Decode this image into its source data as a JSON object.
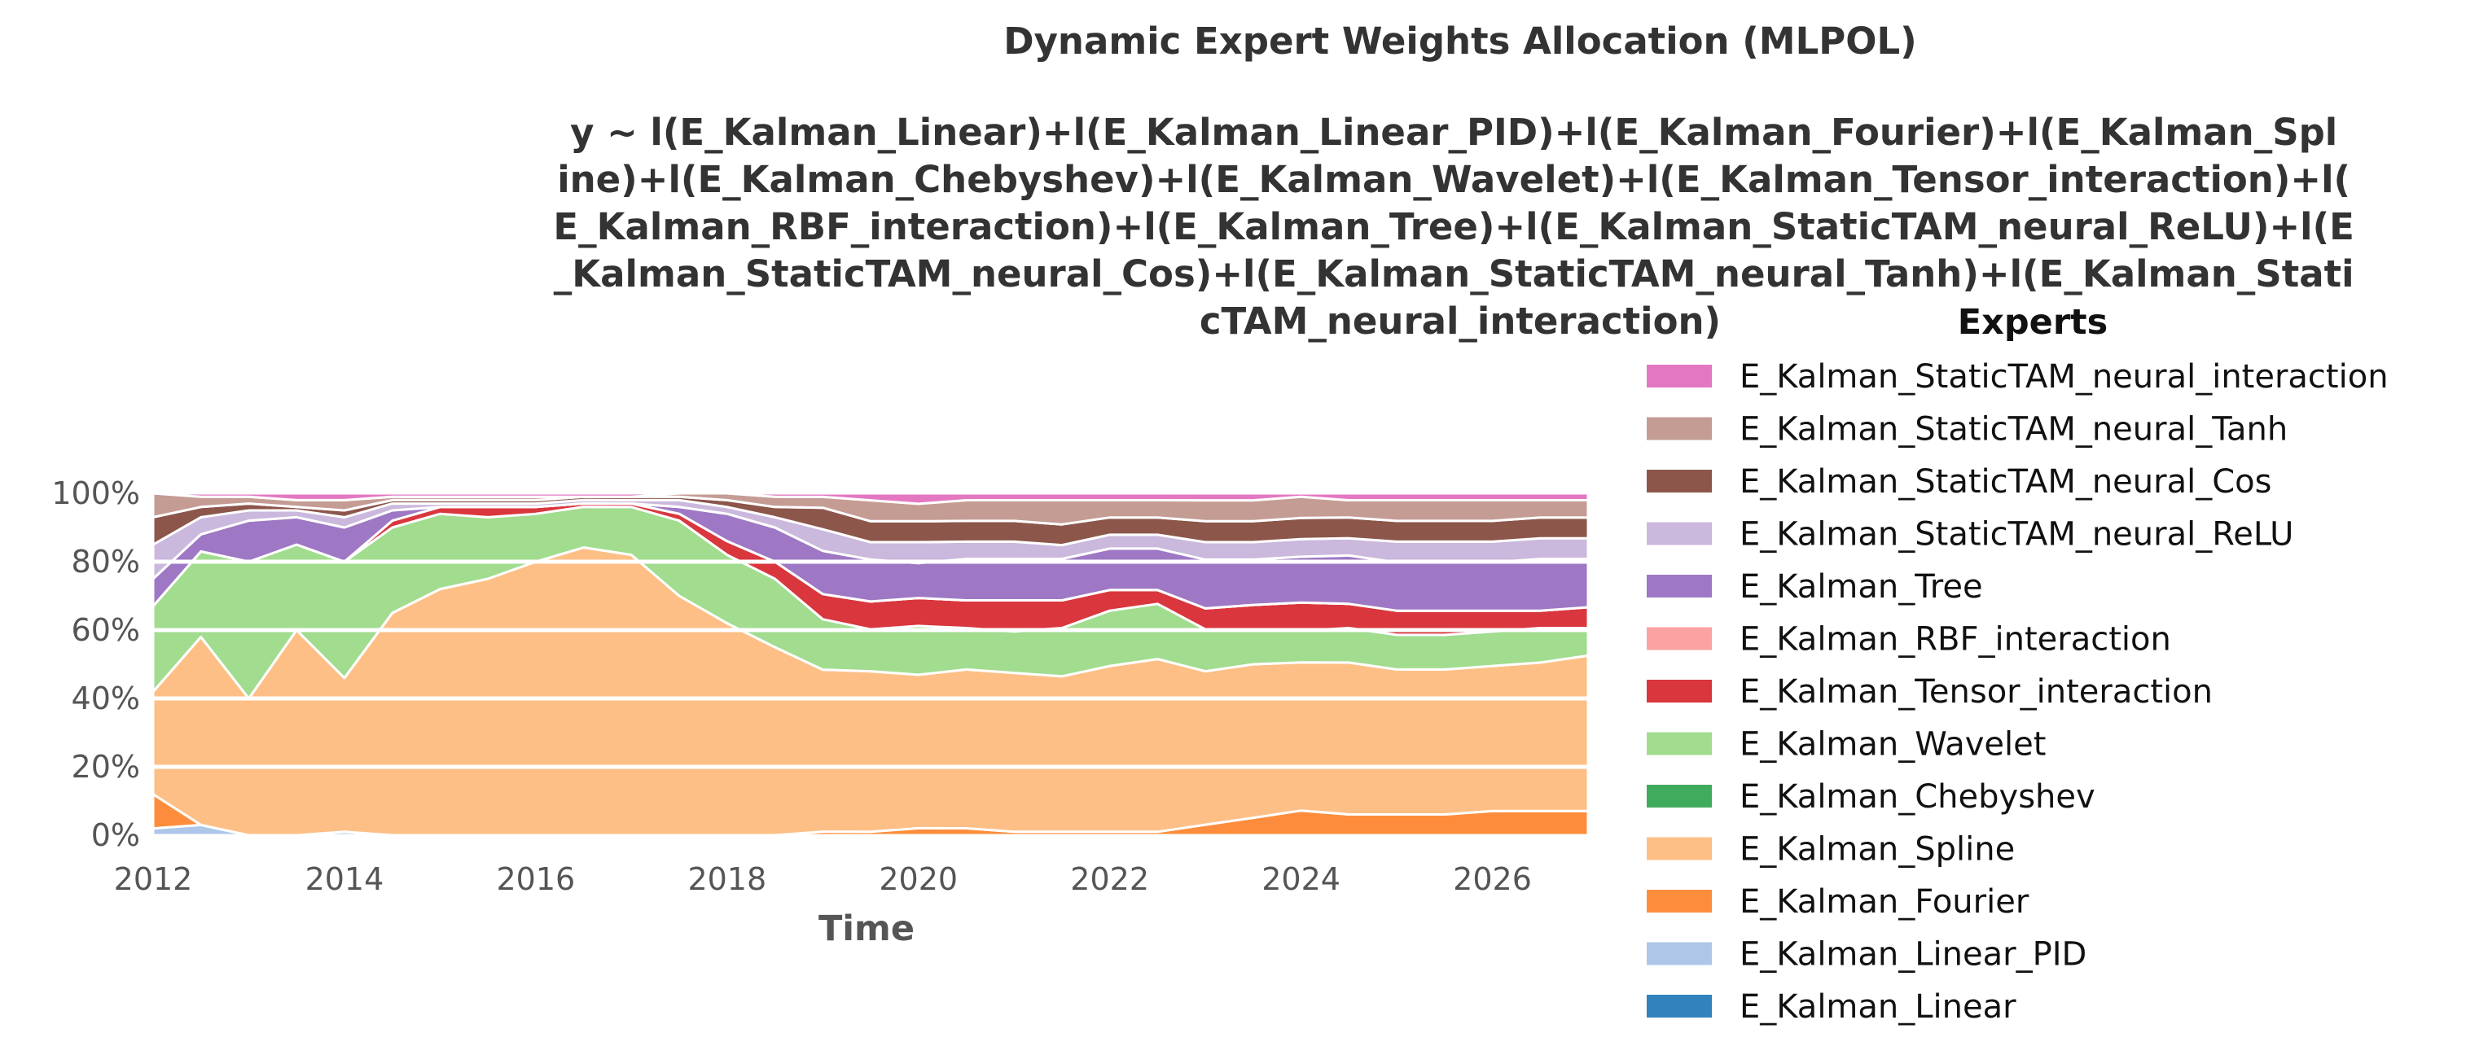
{
  "chart_data": {
    "type": "area",
    "stacked": "percent",
    "title": "Dynamic Expert Weights Allocation (MLPOL)",
    "subtitle": "y ~ l(E_Kalman_Linear)+l(E_Kalman_Linear_PID)+l(E_Kalman_Fourier)+l(E_Kalman_Spline)+l(E_Kalman_Chebyshev)+l(E_Kalman_Wavelet)+l(E_Kalman_Tensor_interaction)+l(E_Kalman_RBF_interaction)+l(E_Kalman_Tree)+l(E_Kalman_StaticTAM_neural_ReLU)+l(E_Kalman_StaticTAM_neural_Cos)+l(E_Kalman_StaticTAM_neural_Tanh)+l(E_Kalman_StaticTAM_neural_interaction)",
    "subtitle_lines": [
      "y ~ l(E_Kalman_Linear)+l(E_Kalman_Linear_PID)+l(E_Kalman_Fourier)+l(E_Kalman_Spl",
      "ine)+l(E_Kalman_Chebyshev)+l(E_Kalman_Wavelet)+l(E_Kalman_Tensor_interaction)+l(",
      "E_Kalman_RBF_interaction)+l(E_Kalman_Tree)+l(E_Kalman_StaticTAM_neural_ReLU)+l(E",
      "_Kalman_StaticTAM_neural_Cos)+l(E_Kalman_StaticTAM_neural_Tanh)+l(E_Kalman_Stati",
      "cTAM_neural_interaction)"
    ],
    "xlabel": "Time",
    "ylabel": "",
    "xlim": [
      2012,
      2027
    ],
    "ylim": [
      0,
      100
    ],
    "x_ticks": [
      2012,
      2014,
      2016,
      2018,
      2020,
      2022,
      2024,
      2026
    ],
    "y_ticks": [
      0,
      20,
      40,
      60,
      80,
      100
    ],
    "y_tick_labels": [
      "0%",
      "20%",
      "40%",
      "60%",
      "80%",
      "100%"
    ],
    "grid": "horizontal",
    "legend": {
      "title": "Experts",
      "placement": "outside-right"
    },
    "x": [
      2012.0,
      2012.5,
      2013.0,
      2013.5,
      2014.0,
      2014.5,
      2015.0,
      2015.5,
      2016.0,
      2016.5,
      2017.0,
      2017.5,
      2018.0,
      2018.5,
      2019.0,
      2019.5,
      2020.0,
      2020.5,
      2021.0,
      2021.5,
      2022.0,
      2022.5,
      2023.0,
      2023.5,
      2024.0,
      2024.5,
      2025.0,
      2025.5,
      2026.0,
      2026.5,
      2027.0
    ],
    "series": [
      {
        "name": "E_Kalman_Linear",
        "color": "#3182bd",
        "values": [
          0,
          0,
          0,
          0,
          0,
          0,
          0,
          0,
          0,
          0,
          0,
          0,
          0,
          0,
          0,
          0,
          0,
          0,
          0,
          0,
          0,
          0,
          0,
          0,
          0,
          0,
          0,
          0,
          0,
          0,
          0
        ]
      },
      {
        "name": "E_Kalman_Linear_PID",
        "color": "#aec7e8",
        "values": [
          2,
          3,
          0,
          0,
          1,
          0,
          0,
          0,
          0,
          0,
          0,
          0,
          0,
          0,
          0,
          0,
          0,
          0,
          0,
          0,
          0,
          0,
          0,
          0,
          0,
          0,
          0,
          0,
          0,
          0,
          0
        ]
      },
      {
        "name": "E_Kalman_Fourier",
        "color": "#fd8d3c",
        "values": [
          10,
          0,
          0,
          0,
          0,
          0,
          0,
          0,
          0,
          0,
          0,
          0,
          0,
          0,
          1,
          1,
          2,
          2,
          1,
          1,
          1,
          1,
          3,
          5,
          7,
          6,
          6,
          6,
          7,
          7,
          7
        ]
      },
      {
        "name": "E_Kalman_Spline",
        "color": "#fdbf86",
        "values": [
          30,
          55,
          40,
          60,
          45,
          65,
          72,
          75,
          80,
          85,
          82,
          70,
          62,
          55,
          45,
          46,
          44,
          46,
          46,
          45,
          48,
          50,
          44,
          44,
          42,
          44,
          42,
          42,
          42,
          43,
          45
        ]
      },
      {
        "name": "E_Kalman_Chebyshev",
        "color": "#41ab5d",
        "values": [
          0,
          0,
          0,
          0,
          0,
          0,
          0,
          0,
          0,
          0,
          0,
          0,
          0,
          0,
          0,
          0,
          0,
          0,
          0,
          0,
          0,
          0,
          0,
          0,
          0,
          0,
          0,
          0,
          0,
          0,
          0
        ]
      },
      {
        "name": "E_Kalman_Wavelet",
        "color": "#a1dc8f",
        "values": [
          25,
          25,
          40,
          25,
          34,
          25,
          22,
          18,
          14,
          12,
          14,
          22,
          20,
          20,
          14,
          12,
          14,
          12,
          12,
          14,
          16,
          16,
          12,
          10,
          9,
          10,
          10,
          10,
          10,
          10,
          8
        ]
      },
      {
        "name": "E_Kalman_Tensor_interaction",
        "color": "#d9363e",
        "values": [
          0,
          0,
          0,
          0,
          0,
          2,
          2,
          3,
          2,
          1,
          1,
          2,
          4,
          5,
          7,
          8,
          8,
          8,
          9,
          8,
          6,
          4,
          6,
          7,
          8,
          7,
          7,
          7,
          6,
          5,
          6
        ]
      },
      {
        "name": "E_Kalman_RBF_interaction",
        "color": "#fca2a2",
        "values": [
          0,
          0,
          0,
          0,
          0,
          0,
          0,
          0,
          0,
          0,
          0,
          0,
          0,
          0,
          0,
          0,
          0,
          0,
          0,
          0,
          0,
          0,
          0,
          0,
          0,
          0,
          0,
          0,
          0,
          0,
          0
        ]
      },
      {
        "name": "E_Kalman_Tree",
        "color": "#9e78c4",
        "values": [
          8,
          5,
          12,
          8,
          10,
          3,
          0,
          0,
          0,
          0,
          0,
          2,
          8,
          10,
          12,
          12,
          10,
          12,
          12,
          12,
          12,
          12,
          14,
          13,
          13,
          14,
          14,
          14,
          14,
          15,
          14
        ]
      },
      {
        "name": "E_Kalman_StaticTAM_neural_ReLU",
        "color": "#cbb8dd",
        "values": [
          10,
          5,
          3,
          2,
          3,
          2,
          1,
          1,
          1,
          1,
          1,
          2,
          2,
          3,
          6,
          5,
          6,
          5,
          5,
          4,
          4,
          4,
          5,
          5,
          5,
          5,
          6,
          6,
          6,
          6,
          6
        ]
      },
      {
        "name": "E_Kalman_StaticTAM_neural_Cos",
        "color": "#8c564b",
        "values": [
          8,
          3,
          2,
          1,
          2,
          1,
          1,
          1,
          1,
          1,
          1,
          1,
          2,
          3,
          6,
          6,
          6,
          6,
          6,
          6,
          5,
          5,
          6,
          6,
          6,
          6,
          6,
          6,
          6,
          6,
          6
        ]
      },
      {
        "name": "E_Kalman_StaticTAM_neural_Tanh",
        "color": "#c49c94",
        "values": [
          7,
          3,
          2,
          2,
          3,
          1,
          1,
          1,
          1,
          0,
          0,
          1,
          2,
          3,
          3,
          6,
          5,
          6,
          6,
          7,
          5,
          5,
          6,
          6,
          6,
          5,
          6,
          6,
          6,
          5,
          5
        ]
      },
      {
        "name": "E_Kalman_StaticTAM_neural_interaction",
        "color": "#e377c2",
        "values": [
          0,
          1,
          1,
          2,
          2,
          1,
          1,
          1,
          1,
          1,
          1,
          0,
          0,
          1,
          1,
          2,
          3,
          2,
          2,
          2,
          2,
          2,
          2,
          2,
          1,
          2,
          2,
          2,
          2,
          2,
          2
        ]
      }
    ]
  }
}
